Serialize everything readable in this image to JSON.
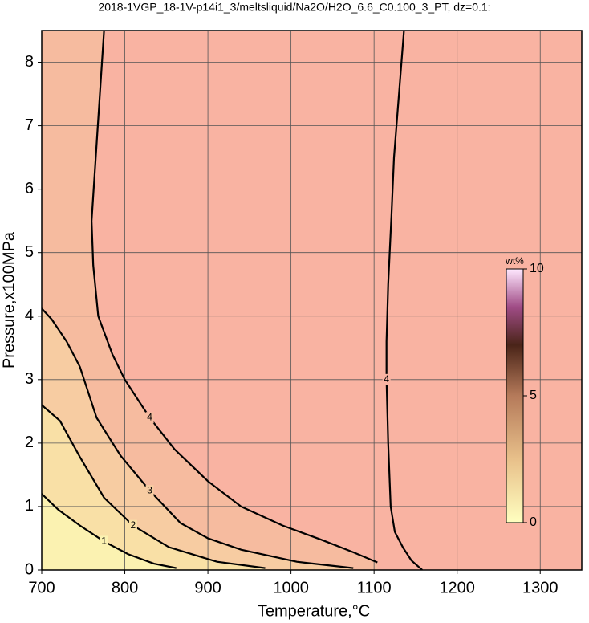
{
  "chart_data": {
    "type": "contour",
    "title": "2018-1VGP_18-1V-p14i1_3/meltsliquid/Na2O/H2O_6.6_C0.100_3_PT, dz=0.1:",
    "x_label": "Temperature,°C",
    "y_label": "Pressure,x100MPa",
    "xlim": [
      700,
      1350
    ],
    "ylim": [
      0,
      8.5
    ],
    "xticks": [
      700,
      800,
      900,
      1000,
      1100,
      1200,
      1300
    ],
    "yticks": [
      0,
      1,
      2,
      3,
      4,
      5,
      6,
      7,
      8
    ],
    "grid": true,
    "background": "#f9b3a2",
    "series": [
      {
        "name": "4",
        "color": "#000000",
        "fill": "#f6bb9f",
        "x": [
          775,
          770,
          765,
          760,
          762,
          768,
          785,
          800,
          830,
          860,
          900,
          940,
          990,
          1036,
          1075,
          1104
        ],
        "y": [
          8.5,
          7.5,
          6.5,
          5.5,
          4.8,
          4.0,
          3.4,
          3.0,
          2.4,
          1.9,
          1.4,
          1.0,
          0.7,
          0.48,
          0.28,
          0.12
        ]
      },
      {
        "name": "4",
        "color": "#000000",
        "x": [
          1136,
          1130,
          1124,
          1121,
          1117,
          1115,
          1115,
          1117,
          1120,
          1125,
          1135,
          1145,
          1158
        ],
        "y": [
          8.5,
          7.5,
          6.5,
          5.6,
          4.5,
          3.6,
          3.0,
          2.0,
          1.0,
          0.6,
          0.35,
          0.15,
          0
        ]
      },
      {
        "name": "3",
        "color": "#000000",
        "fill": "#f7cca2",
        "x": [
          700,
          712,
          730,
          746,
          766,
          795,
          830,
          867,
          900,
          940,
          1007,
          1075
        ],
        "y": [
          4.12,
          3.95,
          3.6,
          3.2,
          2.4,
          1.8,
          1.25,
          0.74,
          0.5,
          0.32,
          0.13,
          0.03
        ]
      },
      {
        "name": "2",
        "color": "#000000",
        "fill": "#f9e0a6",
        "x": [
          700,
          722,
          746,
          775,
          810,
          853,
          911,
          969
        ],
        "y": [
          2.6,
          2.35,
          1.78,
          1.14,
          0.7,
          0.36,
          0.13,
          0.03
        ]
      },
      {
        "name": "1",
        "color": "#000000",
        "fill": "#fbf2b1",
        "x": [
          700,
          720,
          746,
          775,
          804,
          835,
          862
        ],
        "y": [
          1.2,
          0.95,
          0.7,
          0.45,
          0.25,
          0.1,
          0.03
        ]
      }
    ],
    "colorbar": {
      "label": "wt%",
      "lim": [
        0,
        10
      ],
      "ticks": [
        0,
        5,
        10
      ]
    }
  }
}
